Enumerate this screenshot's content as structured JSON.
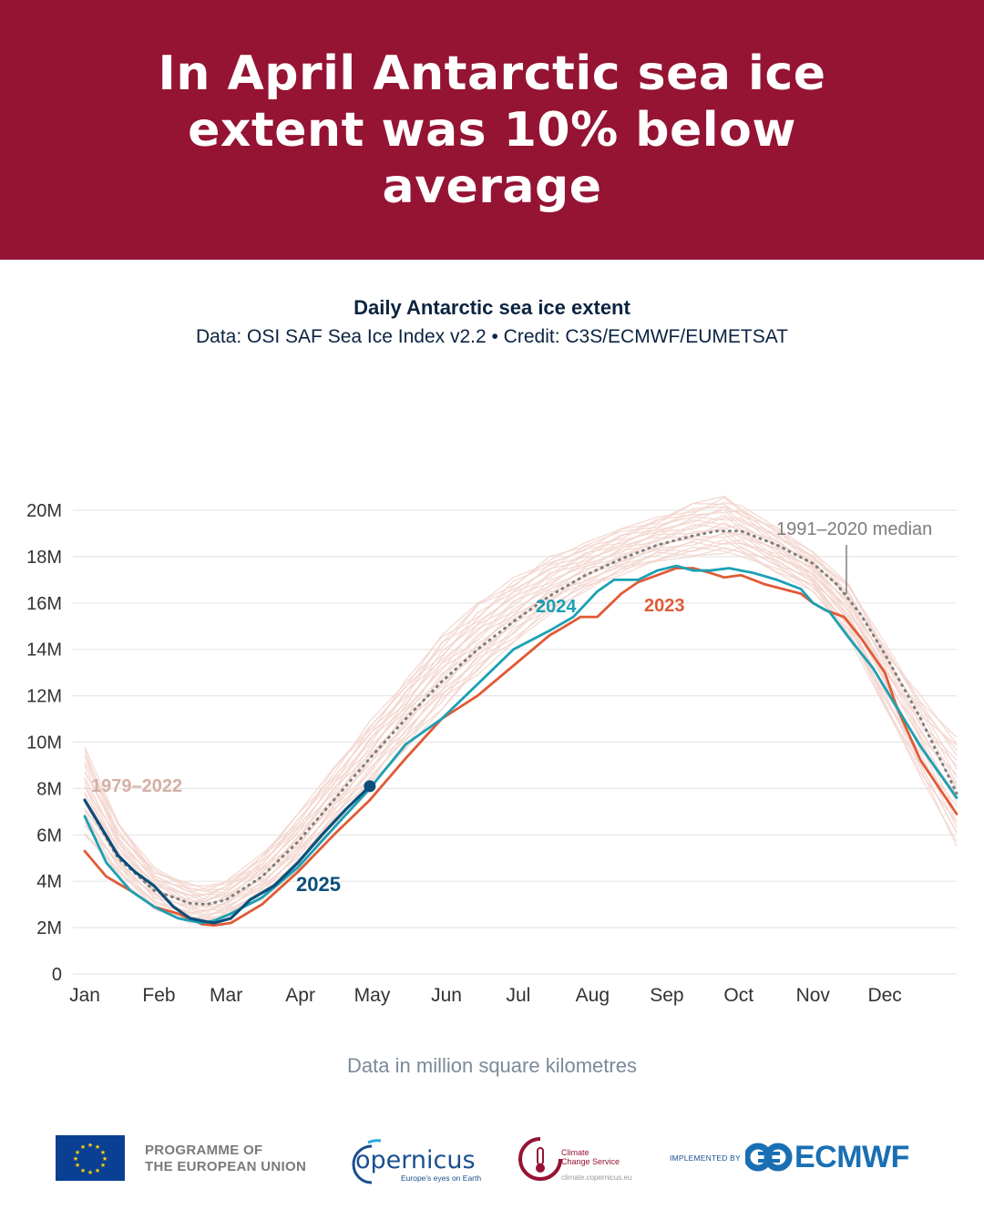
{
  "header": {
    "title": "In April Antarctic sea ice extent was 10% below average",
    "background": "#951333"
  },
  "chart_title": "Daily Antarctic sea ice extent",
  "chart_subtitle": "Data: OSI SAF Sea Ice Index v2.2 • Credit: C3S/ECMWF/EUMETSAT",
  "footnote": "Data in million square kilometres",
  "chart_data": {
    "type": "line",
    "title": "Daily Antarctic sea ice extent",
    "ylim": [
      0,
      20
    ],
    "y_ticks": [
      {
        "value": 0,
        "label": "0"
      },
      {
        "value": 2,
        "label": "2M"
      },
      {
        "value": 4,
        "label": "4M"
      },
      {
        "value": 6,
        "label": "6M"
      },
      {
        "value": 8,
        "label": "8M"
      },
      {
        "value": 10,
        "label": "10M"
      },
      {
        "value": 12,
        "label": "12M"
      },
      {
        "value": 14,
        "label": "14M"
      },
      {
        "value": 16,
        "label": "16M"
      },
      {
        "value": 18,
        "label": "18M"
      },
      {
        "value": 20,
        "label": "20M"
      }
    ],
    "x_unit": "day of year",
    "xlim": [
      1,
      365
    ],
    "x_ticks": [
      {
        "day": 1,
        "label": "Jan"
      },
      {
        "day": 32,
        "label": "Feb"
      },
      {
        "day": 60,
        "label": "Mar"
      },
      {
        "day": 91,
        "label": "Apr"
      },
      {
        "day": 121,
        "label": "May"
      },
      {
        "day": 152,
        "label": "Jun"
      },
      {
        "day": 182,
        "label": "Jul"
      },
      {
        "day": 213,
        "label": "Aug"
      },
      {
        "day": 244,
        "label": "Sep"
      },
      {
        "day": 274,
        "label": "Oct"
      },
      {
        "day": 305,
        "label": "Nov"
      },
      {
        "day": 335,
        "label": "Dec"
      }
    ],
    "grid": true,
    "historical_band": {
      "label": "1979–2022",
      "color": "#f2d3cc",
      "x": [
        1,
        15,
        30,
        45,
        52,
        60,
        75,
        90,
        105,
        120,
        135,
        150,
        165,
        180,
        195,
        210,
        225,
        240,
        255,
        268,
        275,
        290,
        305,
        320,
        335,
        350,
        365
      ],
      "low": [
        6.0,
        4.2,
        2.8,
        2.2,
        2.2,
        2.4,
        3.2,
        4.5,
        6.2,
        7.9,
        9.7,
        11.4,
        12.9,
        14.3,
        15.5,
        16.5,
        17.2,
        17.8,
        18.0,
        18.1,
        18.0,
        17.3,
        16.5,
        14.5,
        11.5,
        8.5,
        5.5
      ],
      "high": [
        9.8,
        6.5,
        4.6,
        3.9,
        3.8,
        4.0,
        5.2,
        6.9,
        8.9,
        10.9,
        12.7,
        14.6,
        16.0,
        17.1,
        18.0,
        18.6,
        19.2,
        19.7,
        20.3,
        20.6,
        20.2,
        19.3,
        18.2,
        16.8,
        14.3,
        12.0,
        10.2
      ]
    },
    "series": [
      {
        "name": "1991–2020 median",
        "color": "#7d7d7d",
        "dashed": true,
        "x": [
          1,
          15,
          30,
          45,
          52,
          60,
          75,
          90,
          105,
          120,
          135,
          150,
          165,
          180,
          195,
          210,
          225,
          240,
          255,
          265,
          275,
          290,
          305,
          315,
          325,
          335,
          350,
          365
        ],
        "y": [
          7.5,
          5.0,
          3.6,
          3.05,
          3.0,
          3.2,
          4.2,
          5.7,
          7.5,
          9.3,
          11.0,
          12.6,
          14.0,
          15.2,
          16.3,
          17.2,
          17.9,
          18.5,
          18.9,
          19.1,
          19.1,
          18.5,
          17.7,
          16.8,
          15.5,
          13.8,
          11.0,
          7.8
        ]
      },
      {
        "name": "2023",
        "color": "#e05a36",
        "dashed": false,
        "x": [
          1,
          10,
          20,
          30,
          40,
          50,
          55,
          62,
          75,
          90,
          105,
          120,
          135,
          150,
          165,
          180,
          195,
          200,
          208,
          215,
          225,
          232,
          240,
          248,
          255,
          262,
          268,
          275,
          285,
          300,
          305,
          310,
          318,
          325,
          335,
          340,
          350,
          365
        ],
        "y": [
          5.3,
          4.2,
          3.6,
          2.9,
          2.6,
          2.15,
          2.1,
          2.2,
          3.0,
          4.4,
          6.0,
          7.5,
          9.3,
          11.0,
          12.0,
          13.3,
          14.6,
          14.9,
          15.4,
          15.4,
          16.4,
          16.9,
          17.2,
          17.5,
          17.5,
          17.3,
          17.1,
          17.2,
          16.8,
          16.4,
          16.0,
          15.7,
          15.4,
          14.5,
          13.0,
          11.5,
          9.2,
          6.9
        ]
      },
      {
        "name": "2024",
        "color": "#1aa0b4",
        "dashed": false,
        "x": [
          1,
          10,
          20,
          30,
          40,
          50,
          55,
          62,
          75,
          90,
          105,
          120,
          135,
          150,
          165,
          180,
          195,
          205,
          215,
          222,
          232,
          240,
          248,
          255,
          262,
          270,
          280,
          290,
          300,
          305,
          312,
          320,
          330,
          340,
          350,
          365
        ],
        "y": [
          6.8,
          4.8,
          3.6,
          2.9,
          2.4,
          2.2,
          2.3,
          2.6,
          3.3,
          4.6,
          6.3,
          8.0,
          9.9,
          11.0,
          12.5,
          14.0,
          14.8,
          15.4,
          16.5,
          17.0,
          17.0,
          17.4,
          17.6,
          17.4,
          17.4,
          17.5,
          17.3,
          17.0,
          16.6,
          16.0,
          15.6,
          14.5,
          13.2,
          11.5,
          9.8,
          7.6
        ]
      },
      {
        "name": "2025",
        "color": "#0b4f7a",
        "dashed": false,
        "x": [
          1,
          8,
          15,
          22,
          30,
          38,
          45,
          52,
          55,
          62,
          70,
          80,
          90,
          100,
          110,
          120
        ],
        "y": [
          7.5,
          6.3,
          5.1,
          4.4,
          3.8,
          2.9,
          2.4,
          2.25,
          2.2,
          2.4,
          3.2,
          3.8,
          4.8,
          6.0,
          7.1,
          8.1
        ]
      }
    ],
    "annotations": [
      {
        "text": "1979–2022",
        "color": "#d4b0a6",
        "series": "1979–2022"
      },
      {
        "text": "1991–2020 median",
        "color": "#7d7d7d",
        "series": "1991–2020 median"
      },
      {
        "text": "2024",
        "color": "#1aa0b4",
        "series": "2024"
      },
      {
        "text": "2023",
        "color": "#e05a36",
        "series": "2023"
      },
      {
        "text": "2025",
        "color": "#0b4f7a",
        "series": "2025"
      }
    ],
    "endpoint_marker": {
      "series": "2025",
      "day": 120,
      "value": 8.1
    }
  },
  "logos": {
    "eu_line1": "PROGRAMME OF",
    "eu_line2": "THE EUROPEAN UNION",
    "copernicus": "opernicus",
    "copernicus_tag": "Europe's eyes on Earth",
    "c3s_line1": "Climate",
    "c3s_line2": "Change Service",
    "c3s_url": "climate.copernicus.eu",
    "implemented_by": "IMPLEMENTED BY",
    "ecmwf": "ECMWF"
  }
}
